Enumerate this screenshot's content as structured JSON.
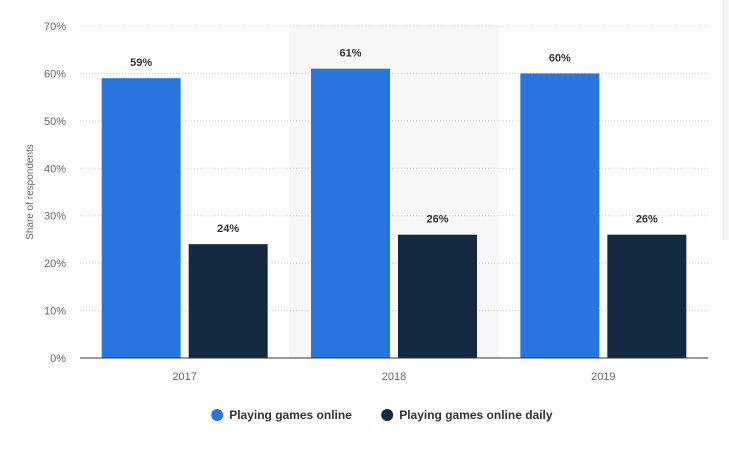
{
  "chart_data": {
    "type": "bar",
    "title": "",
    "xlabel": "",
    "ylabel": "Share of respondents",
    "categories": [
      "2017",
      "2018",
      "2019"
    ],
    "series": [
      {
        "name": "Playing games online",
        "values": [
          59,
          61,
          60
        ],
        "color": "#2876dd"
      },
      {
        "name": "Playing games online daily",
        "values": [
          24,
          26,
          26
        ],
        "color": "#132940"
      }
    ],
    "ylim": [
      0,
      70
    ],
    "yticks": [
      0,
      10,
      20,
      30,
      40,
      50,
      60,
      70
    ],
    "ytick_labels": [
      "0%",
      "10%",
      "20%",
      "30%",
      "40%",
      "50%",
      "60%",
      "70%"
    ],
    "value_suffix": "%",
    "grid": true,
    "legend": "bottom-center",
    "highlighted_category": "2018",
    "highlight_color": "#f7f7f7"
  }
}
